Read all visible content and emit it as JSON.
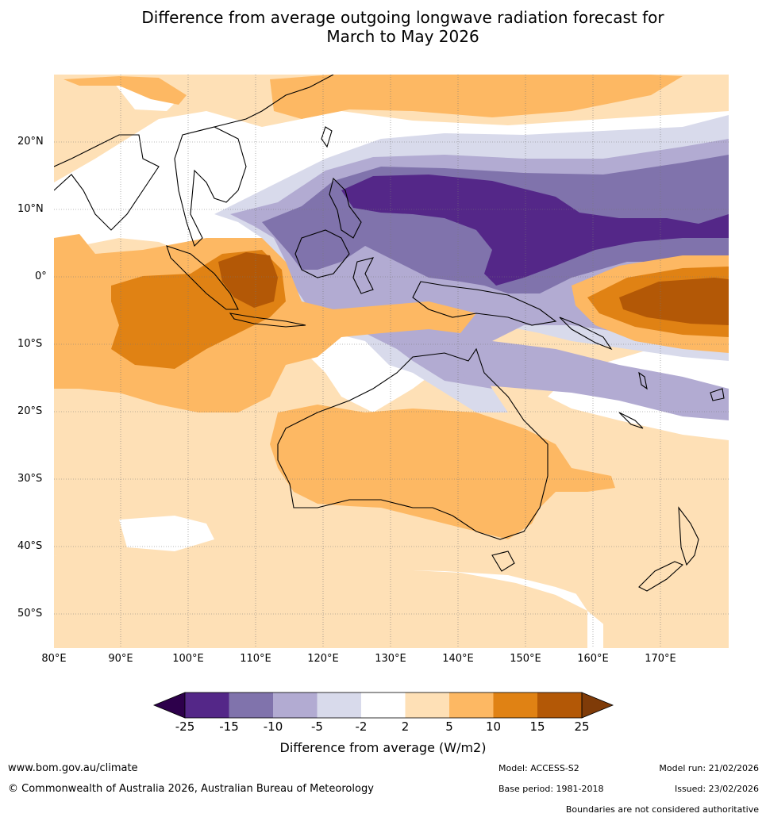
{
  "title": {
    "line1": "Difference from average outgoing longwave radiation forecast for",
    "line2": "March to May 2026"
  },
  "map": {
    "lat_labels": [
      "20°N",
      "10°N",
      "0°",
      "10°S",
      "20°S",
      "30°S",
      "40°S",
      "50°S"
    ],
    "lon_labels": [
      "80°E",
      "90°E",
      "100°E",
      "110°E",
      "120°E",
      "130°E",
      "140°E",
      "150°E",
      "160°E",
      "170°E"
    ],
    "colors": {
      "n25": "#2d004b",
      "n15": "#542788",
      "n10": "#8073ac",
      "n5": "#b2abd2",
      "n2": "#d8daeb",
      "zero": "#ffffff",
      "p2": "#fee0b6",
      "p5": "#fdb863",
      "p10": "#e08214",
      "p15": "#b35806",
      "p25": "#7f3b08"
    }
  },
  "colorbar": {
    "ticks": [
      "-25",
      "-15",
      "-10",
      "-5",
      "-2",
      "2",
      "5",
      "10",
      "15",
      "25"
    ],
    "title": "Difference from average (W/m2)"
  },
  "footer": {
    "website": "www.bom.gov.au/climate",
    "copyright": "© Commonwealth of Australia 2026, Australian Bureau of Meteorology",
    "model": "Model: ACCESS-S2",
    "base_period": "Base period: 1981-2018",
    "model_run": "Model run: 21/02/2026",
    "issued": "Issued: 23/02/2026",
    "disclaimer": "Boundaries are not considered authoritative"
  }
}
